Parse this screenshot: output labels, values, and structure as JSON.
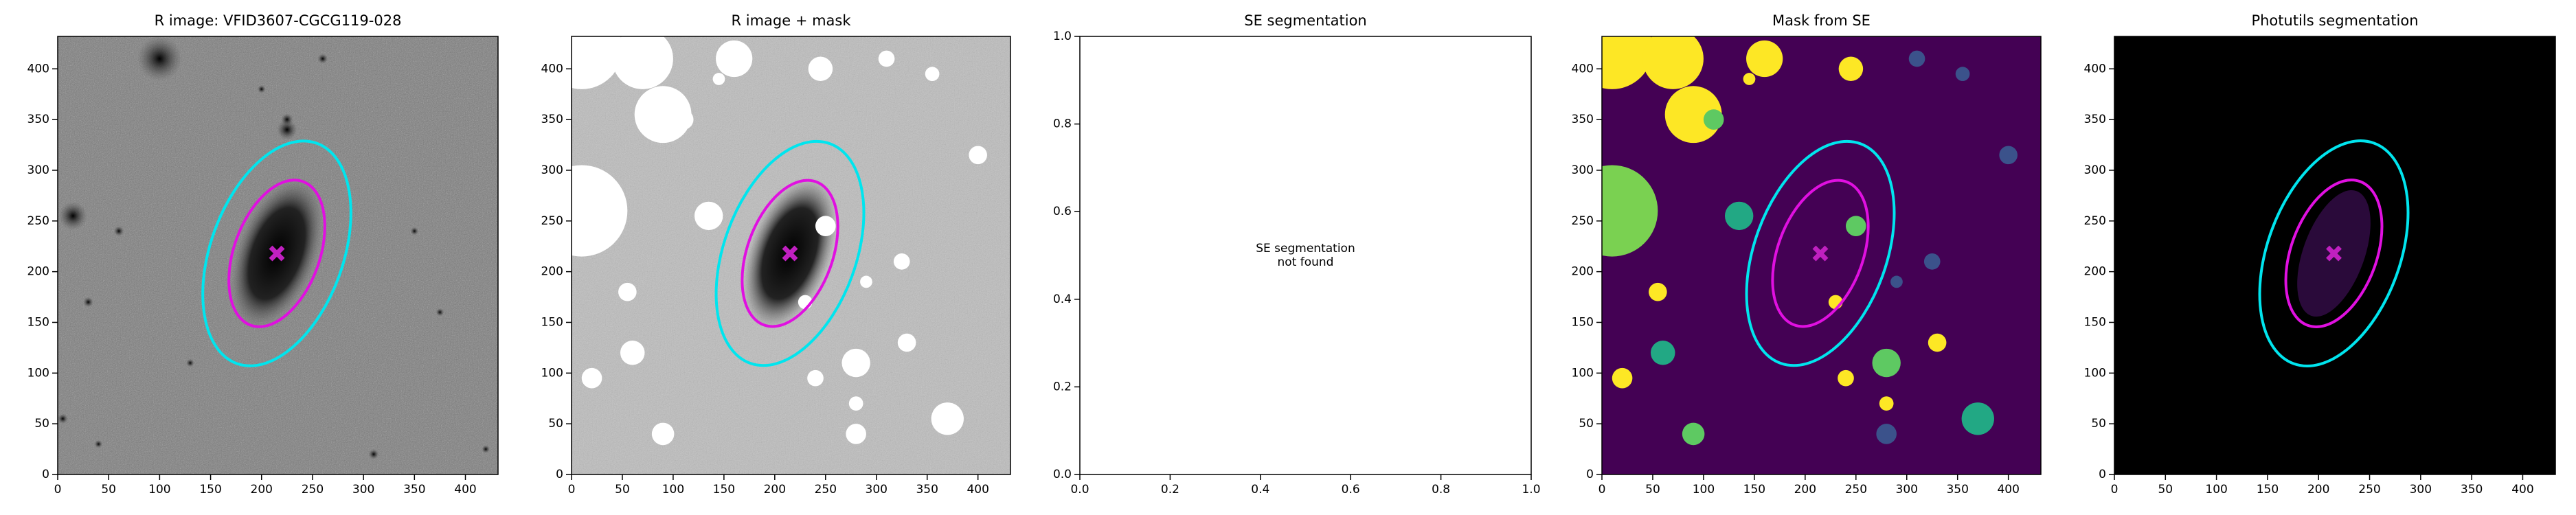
{
  "chart_data": [
    {
      "type": "image",
      "title": "R image: VFID3607-CGCG119-028",
      "xlim": [
        0,
        432
      ],
      "ylim": [
        0,
        432
      ],
      "xticks": [
        0,
        50,
        100,
        150,
        200,
        250,
        300,
        350,
        400
      ],
      "yticks": [
        0,
        50,
        100,
        150,
        200,
        250,
        300,
        350,
        400
      ]
    },
    {
      "type": "image",
      "title": "R image + mask",
      "xlim": [
        0,
        432
      ],
      "ylim": [
        0,
        432
      ],
      "xticks": [
        0,
        50,
        100,
        150,
        200,
        250,
        300,
        350,
        400
      ],
      "yticks": [
        0,
        50,
        100,
        150,
        200,
        250,
        300,
        350,
        400
      ]
    },
    {
      "type": "empty",
      "title": "SE segmentation",
      "annotation": [
        "SE segmentation",
        "not found"
      ],
      "xlim": [
        0,
        1
      ],
      "ylim": [
        0,
        1
      ],
      "xticks": [
        {
          "value": 0,
          "label": "0.0"
        },
        {
          "value": 0.2,
          "label": "0.2"
        },
        {
          "value": 0.4,
          "label": "0.4"
        },
        {
          "value": 0.6,
          "label": "0.6"
        },
        {
          "value": 0.8,
          "label": "0.8"
        },
        {
          "value": 1,
          "label": "1.0"
        }
      ],
      "yticks": [
        {
          "value": 0,
          "label": "0.0"
        },
        {
          "value": 0.2,
          "label": "0.2"
        },
        {
          "value": 0.4,
          "label": "0.4"
        },
        {
          "value": 0.6,
          "label": "0.6"
        },
        {
          "value": 0.8,
          "label": "0.8"
        },
        {
          "value": 1,
          "label": "1.0"
        }
      ]
    },
    {
      "type": "image",
      "title": "Mask from SE",
      "xlim": [
        0,
        432
      ],
      "ylim": [
        0,
        432
      ],
      "xticks": [
        0,
        50,
        100,
        150,
        200,
        250,
        300,
        350,
        400
      ],
      "yticks": [
        0,
        50,
        100,
        150,
        200,
        250,
        300,
        350,
        400
      ]
    },
    {
      "type": "image",
      "title": "Photutils segmentation",
      "xlim": [
        0,
        432
      ],
      "ylim": [
        0,
        432
      ],
      "xticks": [
        0,
        50,
        100,
        150,
        200,
        250,
        300,
        350,
        400
      ],
      "yticks": [
        0,
        50,
        100,
        150,
        200,
        250,
        300,
        350,
        400
      ]
    }
  ]
}
